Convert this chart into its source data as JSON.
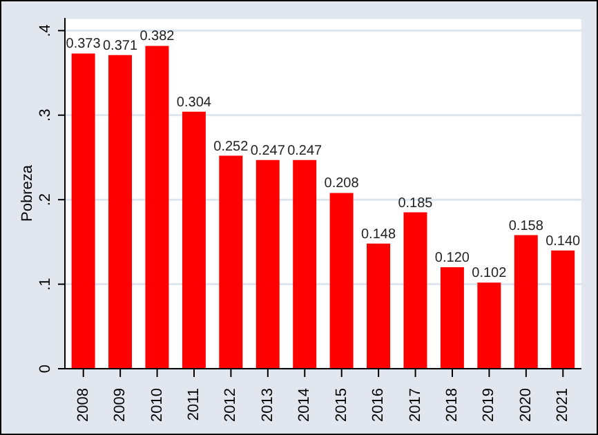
{
  "chart_data": {
    "type": "bar",
    "ylabel": "Pobreza",
    "categories": [
      "2008",
      "2009",
      "2010",
      "2011",
      "2012",
      "2013",
      "2014",
      "2015",
      "2016",
      "2017",
      "2018",
      "2019",
      "2020",
      "2021"
    ],
    "values": [
      0.373,
      0.371,
      0.382,
      0.304,
      0.252,
      0.247,
      0.247,
      0.208,
      0.148,
      0.185,
      0.12,
      0.102,
      0.158,
      0.14
    ],
    "value_labels": [
      "0.373",
      "0.371",
      "0.382",
      "0.304",
      "0.252",
      "0.247",
      "0.247",
      "0.208",
      "0.148",
      "0.185",
      "0.120",
      "0.102",
      "0.158",
      "0.140"
    ],
    "color": "#ff0000",
    "ylim": [
      0,
      0.415
    ],
    "yticks": [
      {
        "value": 0,
        "label": "0"
      },
      {
        "value": 0.1,
        "label": ".1"
      },
      {
        "value": 0.2,
        "label": ".2"
      },
      {
        "value": 0.3,
        "label": ".3"
      },
      {
        "value": 0.4,
        "label": ".4"
      }
    ],
    "grid": "y"
  }
}
